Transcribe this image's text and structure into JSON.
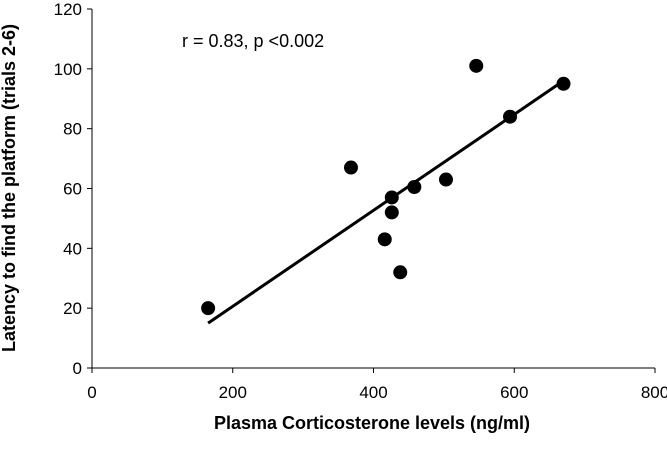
{
  "chart_data": {
    "type": "scatter",
    "title": "",
    "xlabel": "Plasma Corticosterone levels (ng/ml)",
    "ylabel": "Latency to find the platform (trials 2-6)",
    "xlim": [
      0,
      800
    ],
    "ylim": [
      0,
      120
    ],
    "xticks": [
      0,
      200,
      400,
      600,
      800
    ],
    "yticks": [
      0,
      20,
      40,
      60,
      80,
      100,
      120
    ],
    "grid": false,
    "legend": "none",
    "annotation": "r = 0.83, p <0.002",
    "series": [
      {
        "points": [
          {
            "x": 165,
            "y": 20
          },
          {
            "x": 368,
            "y": 67
          },
          {
            "x": 416,
            "y": 43
          },
          {
            "x": 426,
            "y": 57
          },
          {
            "x": 426,
            "y": 52
          },
          {
            "x": 438,
            "y": 32
          },
          {
            "x": 458,
            "y": 60.5
          },
          {
            "x": 503,
            "y": 63
          },
          {
            "x": 546,
            "y": 101
          },
          {
            "x": 594,
            "y": 84
          },
          {
            "x": 670,
            "y": 95
          }
        ]
      }
    ],
    "trendline": {
      "x": [
        165,
        670
      ],
      "y": [
        15,
        96
      ]
    },
    "colors": {
      "marker": "#000000",
      "line": "#000000",
      "axis": "#000000"
    }
  }
}
